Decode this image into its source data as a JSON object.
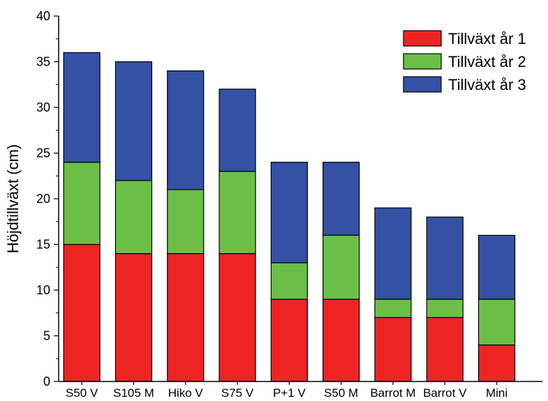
{
  "chart_data": {
    "type": "bar",
    "stacked": true,
    "title": "",
    "xlabel": "",
    "ylabel": "Höjdtillväxt (cm)",
    "ylim": [
      0,
      40
    ],
    "yticks": [
      0,
      5,
      10,
      15,
      20,
      25,
      30,
      35,
      40
    ],
    "grid": false,
    "legend_position": "top-right",
    "categories": [
      "S50 V",
      "S105 M",
      "Hiko V",
      "S75 V",
      "P+1 V",
      "S50 M",
      "Barrot M",
      "Barrot V",
      "Mini"
    ],
    "series": [
      {
        "name": "Tillväxt år 1",
        "color": "#ee2424",
        "values": [
          15,
          14,
          14,
          14,
          9,
          9,
          7,
          7,
          4
        ]
      },
      {
        "name": "Tillväxt år 2",
        "color": "#6cbf46",
        "values": [
          9,
          8,
          7,
          9,
          4,
          7,
          2,
          2,
          5
        ]
      },
      {
        "name": "Tillväxt år 3",
        "color": "#3451a5",
        "values": [
          12,
          13,
          13,
          9,
          11,
          8,
          10,
          9,
          7
        ]
      }
    ]
  }
}
